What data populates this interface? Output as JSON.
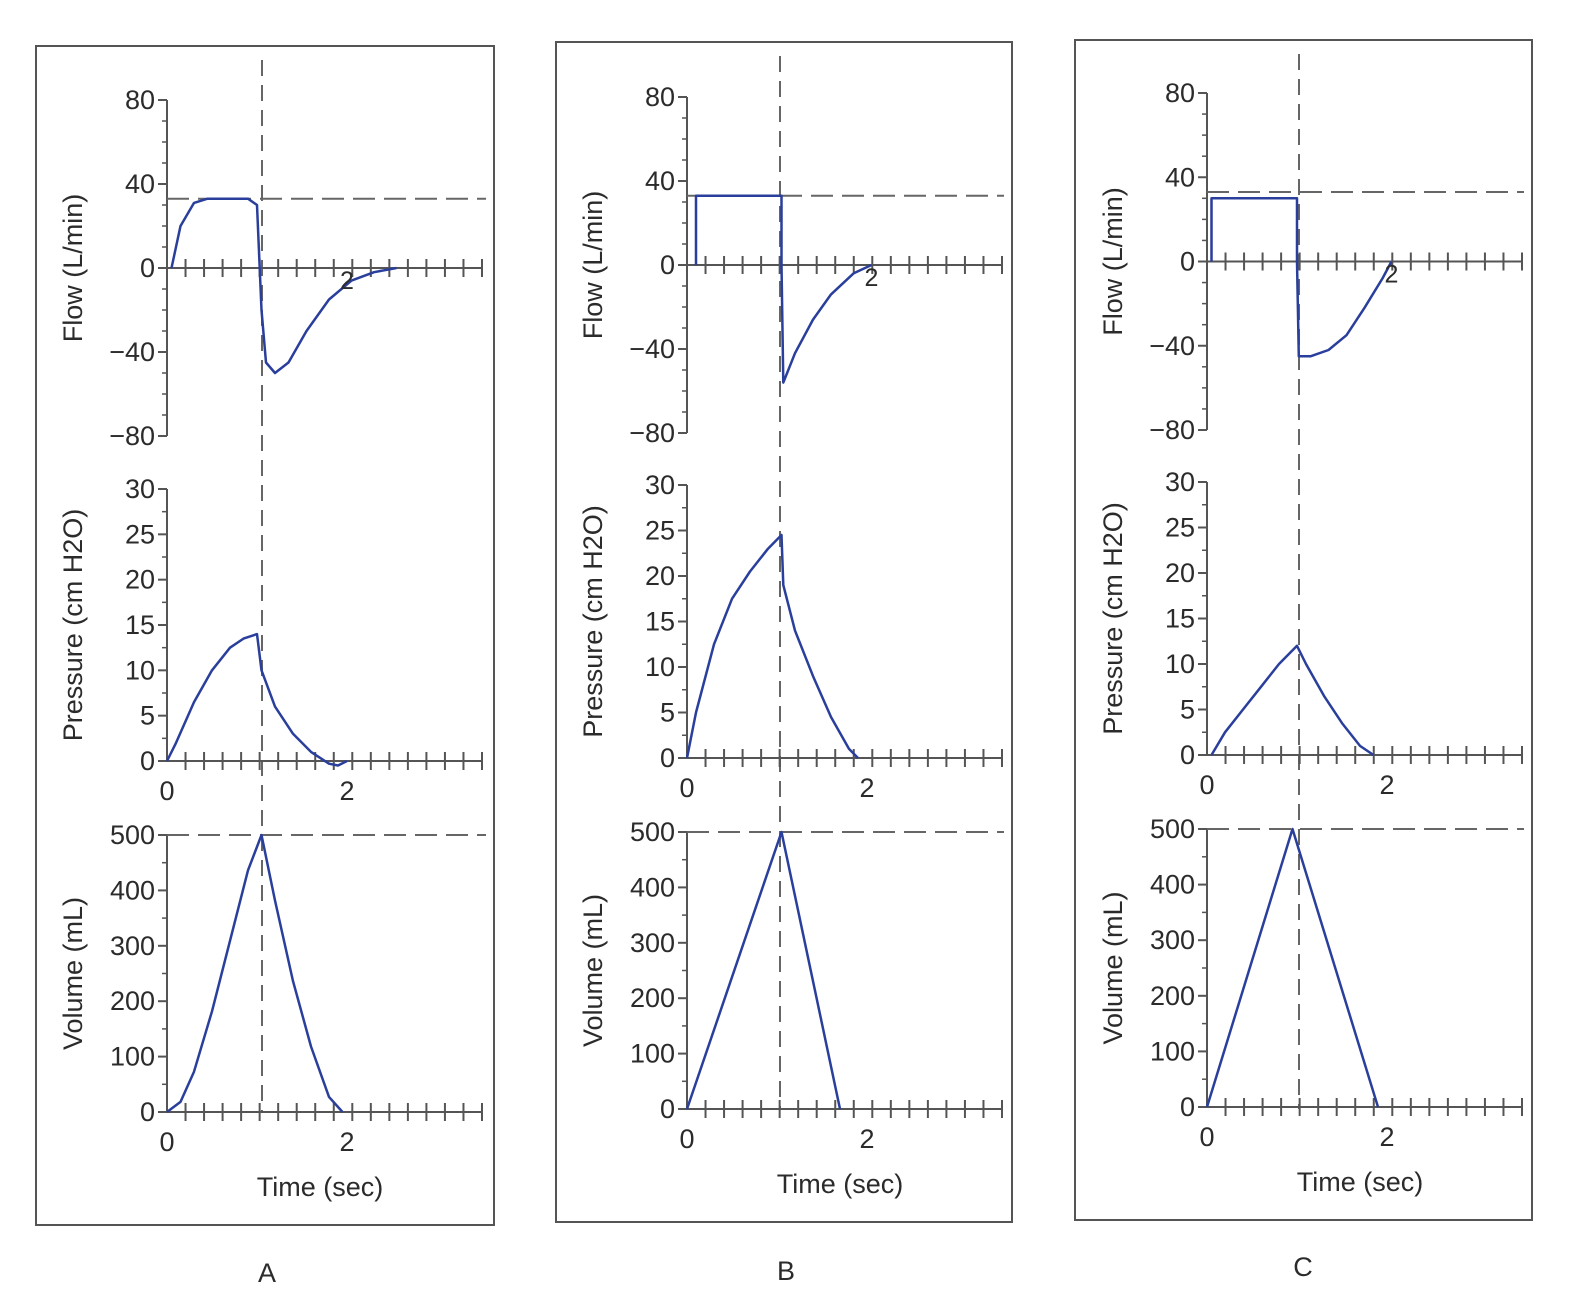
{
  "colors": {
    "curve": "#2a3f9c",
    "axis": "#555555",
    "frame": "#555555",
    "guide": "#666666",
    "text": "#2b2b2b",
    "background": "#ffffff"
  },
  "chart_data": [
    {
      "panel": "A",
      "type": "line",
      "curve_label": "2",
      "subplots": [
        {
          "id": "flow",
          "ylabel": "Flow (L/min)",
          "yticks": [
            "80",
            "40",
            "0",
            "−40",
            "−80"
          ],
          "ylim": [
            -80,
            80
          ],
          "xlim": [
            0,
            3.5
          ],
          "x_tick_labels": [],
          "reference_line_y": 33,
          "series": [
            {
              "x": [
                0.05,
                0.15,
                0.3,
                0.45,
                0.6,
                0.75,
                0.9,
                1.0,
                1.02,
                1.05,
                1.1,
                1.2,
                1.35,
                1.55,
                1.8,
                2.05,
                2.3,
                2.55
              ],
              "y": [
                0,
                20,
                31,
                33,
                33,
                33,
                33,
                30,
                10,
                -20,
                -45,
                -50,
                -45,
                -30,
                -15,
                -6,
                -2,
                0
              ]
            }
          ]
        },
        {
          "id": "pressure",
          "ylabel": "Pressure (cm H2O)",
          "yticks": [
            "30",
            "25",
            "20",
            "15",
            "10",
            "5",
            "0"
          ],
          "ylim": [
            0,
            30
          ],
          "xlim": [
            0,
            3.5
          ],
          "x_tick_labels": [
            "0",
            "2"
          ],
          "series": [
            {
              "x": [
                0,
                0.1,
                0.3,
                0.5,
                0.7,
                0.85,
                1.0,
                1.05,
                1.2,
                1.4,
                1.6,
                1.8,
                1.9,
                2.0
              ],
              "y": [
                0,
                2,
                6.5,
                10,
                12.5,
                13.5,
                14,
                10,
                6,
                3,
                1,
                -0.3,
                -0.5,
                0
              ]
            }
          ]
        },
        {
          "id": "volume",
          "ylabel": "Volume (mL)",
          "yticks": [
            "500",
            "400",
            "300",
            "200",
            "100",
            "0"
          ],
          "ylim": [
            0,
            550
          ],
          "xlim": [
            0,
            3.5
          ],
          "x_tick_labels": [
            "0",
            "2"
          ],
          "xlabel": "Time (sec)",
          "reference_line_y": 550,
          "series": [
            {
              "x": [
                0,
                0.15,
                0.3,
                0.5,
                0.7,
                0.9,
                1.05,
                1.2,
                1.4,
                1.6,
                1.8,
                1.95
              ],
              "y": [
                0,
                20,
                80,
                200,
                340,
                480,
                550,
                420,
                260,
                130,
                30,
                0
              ]
            }
          ]
        }
      ]
    },
    {
      "panel": "B",
      "type": "line",
      "curve_label": "2",
      "subplots": [
        {
          "id": "flow",
          "ylabel": "Flow (L/min)",
          "yticks": [
            "80",
            "40",
            "0",
            "−40",
            "−80"
          ],
          "ylim": [
            -80,
            80
          ],
          "xlim": [
            0,
            3.5
          ],
          "x_tick_labels": [],
          "reference_line_y": 33,
          "series": [
            {
              "x": [
                0.1,
                0.1,
                0.12,
                1.05,
                1.05,
                1.07,
                1.2,
                1.4,
                1.6,
                1.85,
                2.05
              ],
              "y": [
                0,
                33,
                33,
                33,
                0,
                -56,
                -42,
                -26,
                -14,
                -4,
                0
              ]
            }
          ]
        },
        {
          "id": "pressure",
          "ylabel": "Pressure (cm H2O)",
          "yticks": [
            "30",
            "25",
            "20",
            "15",
            "10",
            "5",
            "0"
          ],
          "ylim": [
            0,
            30
          ],
          "xlim": [
            0,
            3.5
          ],
          "x_tick_labels": [
            "0",
            "2"
          ],
          "series": [
            {
              "x": [
                0,
                0.1,
                0.3,
                0.5,
                0.7,
                0.9,
                1.05,
                1.07,
                1.2,
                1.4,
                1.6,
                1.8,
                1.9
              ],
              "y": [
                0,
                5,
                12.5,
                17.5,
                20.5,
                23,
                24.5,
                19,
                14,
                9,
                4.5,
                1,
                0
              ]
            }
          ]
        },
        {
          "id": "volume",
          "ylabel": "Volume (mL)",
          "yticks": [
            "500",
            "400",
            "300",
            "200",
            "100",
            "0"
          ],
          "ylim": [
            0,
            550
          ],
          "xlim": [
            0,
            3.5
          ],
          "x_tick_labels": [
            "0",
            "2"
          ],
          "xlabel": "Time (sec)",
          "reference_line_y": 550,
          "series": [
            {
              "x": [
                0,
                1.05,
                1.7
              ],
              "y": [
                0,
                550,
                0
              ]
            }
          ]
        }
      ]
    },
    {
      "panel": "C",
      "type": "line",
      "curve_label": "2",
      "subplots": [
        {
          "id": "flow",
          "ylabel": "Flow (L/min)",
          "yticks": [
            "80",
            "40",
            "0",
            "−40",
            "−80"
          ],
          "ylim": [
            -80,
            80
          ],
          "xlim": [
            0,
            3.5
          ],
          "x_tick_labels": [],
          "reference_line_y": 33,
          "series": [
            {
              "x": [
                0.05,
                0.05,
                0.07,
                1.0,
                1.0,
                1.02,
                1.15,
                1.35,
                1.55,
                1.75,
                1.95,
                2.05
              ],
              "y": [
                0,
                30,
                30,
                30,
                0,
                -45,
                -45,
                -42,
                -35,
                -22,
                -8,
                0
              ]
            }
          ]
        },
        {
          "id": "pressure",
          "ylabel": "Pressure (cm H2O)",
          "yticks": [
            "30",
            "25",
            "20",
            "15",
            "10",
            "5",
            "0"
          ],
          "ylim": [
            0,
            30
          ],
          "xlim": [
            0,
            3.5
          ],
          "x_tick_labels": [
            "0",
            "2"
          ],
          "series": [
            {
              "x": [
                0.05,
                0.2,
                0.4,
                0.6,
                0.8,
                1.0,
                1.1,
                1.3,
                1.5,
                1.7,
                1.85
              ],
              "y": [
                0,
                2.5,
                5,
                7.5,
                10,
                12,
                10,
                6.5,
                3.5,
                1,
                0
              ]
            }
          ]
        },
        {
          "id": "volume",
          "ylabel": "Volume (mL)",
          "yticks": [
            "500",
            "400",
            "300",
            "200",
            "100",
            "0"
          ],
          "ylim": [
            0,
            550
          ],
          "xlim": [
            0,
            3.5
          ],
          "x_tick_labels": [
            "0",
            "2"
          ],
          "xlabel": "Time (sec)",
          "reference_line_y": 550,
          "series": [
            {
              "x": [
                0,
                0.95,
                1.9
              ],
              "y": [
                0,
                550,
                0
              ]
            }
          ]
        }
      ]
    }
  ]
}
